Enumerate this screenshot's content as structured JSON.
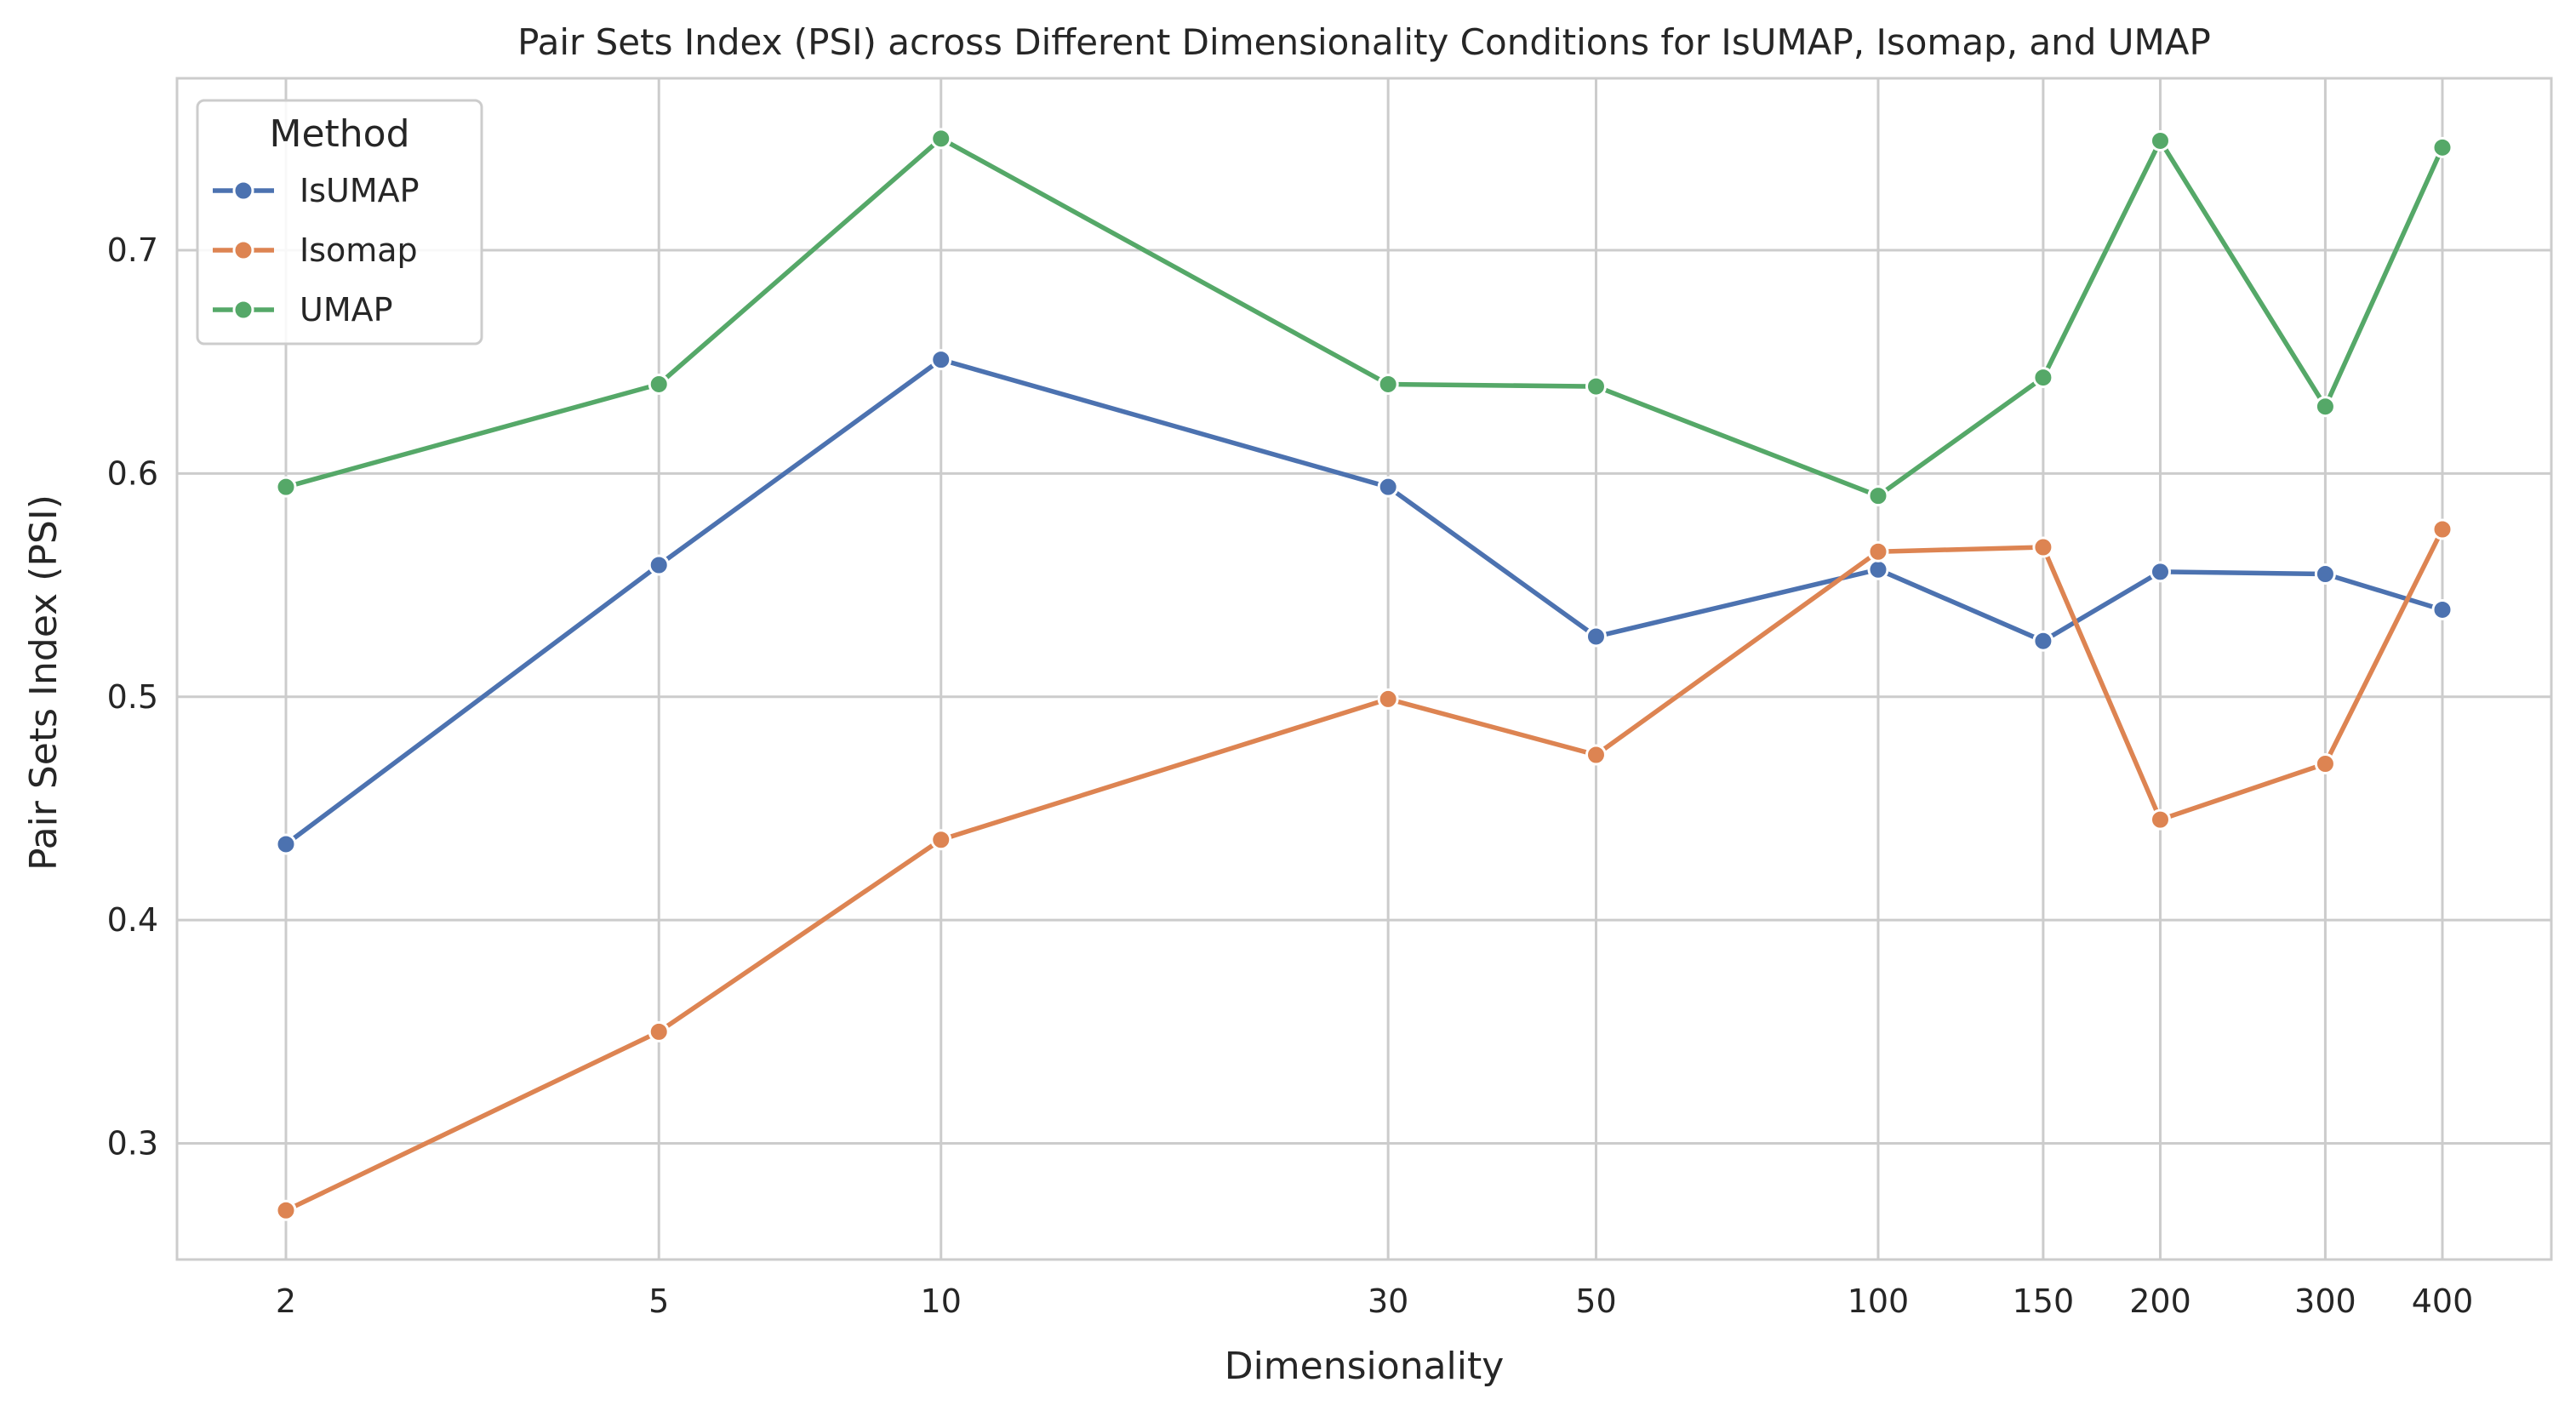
{
  "chart_data": {
    "type": "line",
    "title": "Pair Sets Index (PSI) across Different Dimensionality Conditions for IsUMAP, Isomap, and UMAP",
    "xlabel": "Dimensionality",
    "ylabel": "Pair Sets Index (PSI)",
    "x_scale": "log",
    "x": [
      2,
      5,
      10,
      30,
      50,
      100,
      150,
      200,
      300,
      400
    ],
    "x_tick_labels": [
      "2",
      "5",
      "10",
      "30",
      "50",
      "100",
      "150",
      "200",
      "300",
      "400"
    ],
    "y_ticks": [
      0.3,
      0.4,
      0.5,
      0.6,
      0.7
    ],
    "y_tick_labels": [
      "0.3",
      "0.4",
      "0.5",
      "0.6",
      "0.7"
    ],
    "ylim": [
      0.248,
      0.777
    ],
    "grid": true,
    "legend": {
      "title": "Method",
      "placement": "top-left"
    },
    "series": [
      {
        "name": "IsUMAP",
        "color": "#4c72b0",
        "marker": "circle",
        "values": [
          0.434,
          0.559,
          0.651,
          0.594,
          0.527,
          0.557,
          0.525,
          0.556,
          0.555,
          0.539
        ]
      },
      {
        "name": "Isomap",
        "color": "#dd8452",
        "marker": "circle",
        "values": [
          0.27,
          0.35,
          0.436,
          0.499,
          0.474,
          0.565,
          0.567,
          0.445,
          0.47,
          0.575
        ]
      },
      {
        "name": "UMAP",
        "color": "#55a868",
        "marker": "circle",
        "values": [
          0.594,
          0.64,
          0.75,
          0.64,
          0.639,
          0.59,
          0.643,
          0.749,
          0.63,
          0.746
        ]
      }
    ]
  }
}
